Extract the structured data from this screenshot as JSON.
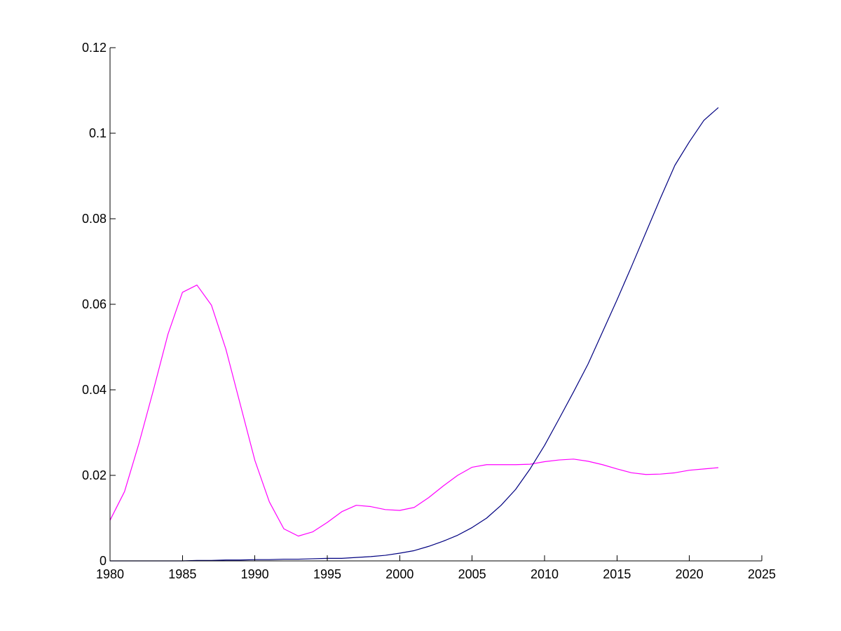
{
  "chart_data": {
    "type": "line",
    "title": "",
    "xlabel": "",
    "ylabel": "",
    "xlim": [
      1980,
      2025
    ],
    "ylim": [
      0,
      0.12
    ],
    "grid": false,
    "legend": "none",
    "x_ticks": [
      1980,
      1985,
      1990,
      1995,
      2000,
      2005,
      2010,
      2015,
      2020,
      2025
    ],
    "x_tick_labels": [
      "1980",
      "1985",
      "1990",
      "1995",
      "2000",
      "2005",
      "2010",
      "2015",
      "2020",
      "2025"
    ],
    "y_ticks": [
      0,
      0.02,
      0.04,
      0.06,
      0.08,
      0.1,
      0.12
    ],
    "y_tick_labels": [
      "0",
      "0.02",
      "0.04",
      "0.06",
      "0.08",
      "0.1",
      "0.12"
    ],
    "x": [
      1980,
      1981,
      1982,
      1983,
      1984,
      1985,
      1986,
      1987,
      1988,
      1989,
      1990,
      1991,
      1992,
      1993,
      1994,
      1995,
      1996,
      1997,
      1998,
      1999,
      2000,
      2001,
      2002,
      2003,
      2004,
      2005,
      2006,
      2007,
      2008,
      2009,
      2010,
      2011,
      2012,
      2013,
      2014,
      2015,
      2016,
      2017,
      2018,
      2019,
      2020,
      2021,
      2022
    ],
    "series": [
      {
        "color": "#ff00ff",
        "values": [
          0.0095,
          0.0162,
          0.0275,
          0.04,
          0.053,
          0.0628,
          0.0645,
          0.0598,
          0.0495,
          0.0365,
          0.0235,
          0.0138,
          0.0075,
          0.0058,
          0.0068,
          0.009,
          0.0115,
          0.013,
          0.0127,
          0.012,
          0.0118,
          0.0125,
          0.0148,
          0.0175,
          0.02,
          0.0219,
          0.0225,
          0.0225,
          0.0225,
          0.0226,
          0.0232,
          0.0236,
          0.0238,
          0.0233,
          0.0225,
          0.0215,
          0.0206,
          0.0202,
          0.0203,
          0.0206,
          0.0212,
          0.0215,
          0.0218
        ]
      },
      {
        "color": "#000080",
        "values": [
          0.0,
          0.0,
          0.0,
          0.0,
          0.0,
          0.0,
          0.0001,
          0.0001,
          0.0002,
          0.0002,
          0.0003,
          0.0003,
          0.0004,
          0.0004,
          0.0005,
          0.0006,
          0.0006,
          0.0008,
          0.001,
          0.0013,
          0.0018,
          0.0024,
          0.0034,
          0.0046,
          0.006,
          0.0078,
          0.01,
          0.013,
          0.0167,
          0.0215,
          0.027,
          0.0332,
          0.0395,
          0.046,
          0.0535,
          0.061,
          0.0688,
          0.0768,
          0.0848,
          0.0925,
          0.098,
          0.103,
          0.106
        ]
      }
    ]
  }
}
